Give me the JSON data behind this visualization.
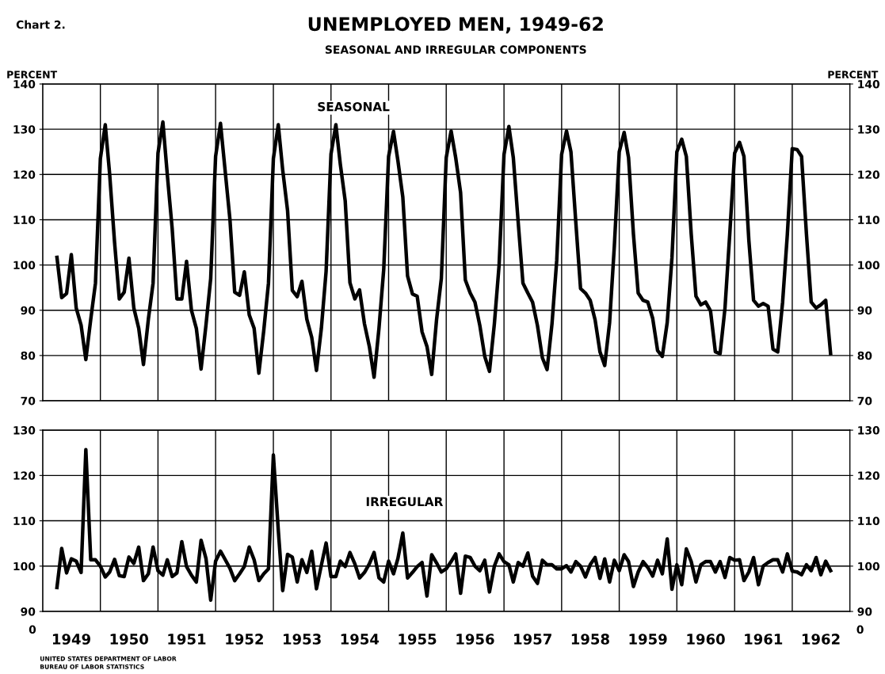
{
  "chart_data": [
    {
      "type": "line",
      "title": "UNEMPLOYED MEN, 1949-62",
      "subtitle": "SEASONAL AND IRREGULAR COMPONENTS",
      "ylabel": "PERCENT",
      "y2label": "PERCENT",
      "annotations": [
        "Chart 2."
      ],
      "x": [
        "1949-04",
        "1949-05",
        "1949-06",
        "1949-07",
        "1949-08",
        "1949-09",
        "1949-10",
        "1949-11",
        "1949-12",
        "1950-01",
        "1950-02",
        "1950-03",
        "1950-04",
        "1950-05",
        "1950-06",
        "1950-07",
        "1950-08",
        "1950-09",
        "1950-10",
        "1950-11",
        "1950-12",
        "1951-01",
        "1951-02",
        "1951-03",
        "1951-04",
        "1951-05",
        "1951-06",
        "1951-07",
        "1951-08",
        "1951-09",
        "1951-10",
        "1951-11",
        "1951-12",
        "1952-01",
        "1952-02",
        "1952-03",
        "1952-04",
        "1952-05",
        "1952-06",
        "1952-07",
        "1952-08",
        "1952-09",
        "1952-10",
        "1952-11",
        "1952-12",
        "1953-01",
        "1953-02",
        "1953-03",
        "1953-04",
        "1953-05",
        "1953-06",
        "1953-07",
        "1953-08",
        "1953-09",
        "1953-10",
        "1953-11",
        "1953-12",
        "1954-01",
        "1954-02",
        "1954-03",
        "1954-04",
        "1954-05",
        "1954-06",
        "1954-07",
        "1954-08",
        "1954-09",
        "1954-10",
        "1954-11",
        "1954-12",
        "1955-01",
        "1955-02",
        "1955-03",
        "1955-04",
        "1955-05",
        "1955-06",
        "1955-07",
        "1955-08",
        "1955-09",
        "1955-10",
        "1955-11",
        "1955-12",
        "1956-01",
        "1956-02",
        "1956-03",
        "1956-04",
        "1956-05",
        "1956-06",
        "1956-07",
        "1956-08",
        "1956-09",
        "1956-10",
        "1956-11",
        "1956-12",
        "1957-01",
        "1957-02",
        "1957-03",
        "1957-04",
        "1957-05",
        "1957-06",
        "1957-07",
        "1957-08",
        "1957-09",
        "1957-10",
        "1957-11",
        "1957-12",
        "1958-01",
        "1958-02",
        "1958-03",
        "1958-04",
        "1958-05",
        "1958-06",
        "1958-07",
        "1958-08",
        "1958-09",
        "1958-10",
        "1958-11",
        "1958-12",
        "1959-01",
        "1959-02",
        "1959-03",
        "1959-04",
        "1959-05",
        "1959-06",
        "1959-07",
        "1959-08",
        "1959-09",
        "1959-10",
        "1959-11",
        "1959-12",
        "1960-01",
        "1960-02",
        "1960-03",
        "1960-04",
        "1960-05",
        "1960-06",
        "1960-07",
        "1960-08",
        "1960-09",
        "1960-10",
        "1960-11",
        "1960-12",
        "1961-01",
        "1961-02",
        "1961-03",
        "1961-04",
        "1961-05",
        "1961-06",
        "1961-07",
        "1961-08",
        "1961-09",
        "1961-10",
        "1961-11",
        "1961-12",
        "1962-01",
        "1962-02",
        "1962-03",
        "1962-04",
        "1962-05",
        "1962-06",
        "1962-07",
        "1962-08",
        "1962-09"
      ],
      "series": [
        {
          "name": "SEASONAL",
          "color": "#000000",
          "values": [
            101.7,
            92.8,
            93.7,
            102.3,
            90.5,
            86.7,
            79.1,
            88,
            96,
            123.5,
            131,
            120,
            105,
            92.5,
            94,
            101.5,
            90.5,
            86,
            78,
            88,
            96,
            124.7,
            131.6,
            120,
            108,
            92.5,
            92.5,
            100.8,
            90,
            86,
            77,
            86.7,
            97,
            124,
            131.3,
            121,
            110,
            94,
            93.3,
            98.5,
            89,
            86,
            76.1,
            85.5,
            96,
            123.5,
            131,
            121,
            112,
            94.4,
            93,
            96.4,
            88,
            84,
            76.7,
            86,
            98.6,
            124.5,
            131,
            122.3,
            114.2,
            96.1,
            92.5,
            94.5,
            87,
            82,
            75.2,
            86,
            99,
            124,
            129.5,
            123,
            115,
            97.6,
            93.6,
            93.1,
            85.2,
            82,
            75.8,
            88,
            97,
            123.7,
            129.6,
            123.7,
            116,
            96.7,
            93.8,
            91.8,
            86.6,
            79.8,
            76.5,
            87,
            100,
            124.4,
            130.6,
            123.7,
            109.4,
            96,
            93.8,
            91.8,
            86.6,
            79.5,
            76.9,
            87,
            101,
            124.4,
            129.6,
            125,
            109.4,
            94.8,
            93.8,
            92.2,
            87.9,
            80.8,
            77.8,
            87.3,
            104.2,
            125,
            129.3,
            123.7,
            106.8,
            93.8,
            92.2,
            91.8,
            88.2,
            81.1,
            79.8,
            87.3,
            101.6,
            125,
            127.8,
            124,
            106.8,
            93.1,
            91.2,
            91.8,
            89.9,
            80.8,
            80.4,
            90.5,
            106.8,
            124.7,
            127.1,
            124,
            105.5,
            92.2,
            90.9,
            91.5,
            90.9,
            81.4,
            80.8,
            91.8,
            106.8,
            125.7,
            125.5,
            124,
            106.8,
            91.8,
            90.5,
            91.2,
            92.2,
            80.4
          ]
        }
      ],
      "xlim": [
        "1949-01",
        "1963-01"
      ],
      "xticks": [
        {
          "value": "1950-01",
          "label": null
        },
        {
          "value": "1951-01",
          "label": null
        },
        {
          "value": "1952-01",
          "label": null
        },
        {
          "value": "1953-01",
          "label": null
        },
        {
          "value": "1954-01",
          "label": null
        },
        {
          "value": "1955-01",
          "label": null
        },
        {
          "value": "1956-01",
          "label": null
        },
        {
          "value": "1957-01",
          "label": null
        },
        {
          "value": "1958-01",
          "label": null
        },
        {
          "value": "1959-01",
          "label": null
        },
        {
          "value": "1960-01",
          "label": null
        },
        {
          "value": "1961-01",
          "label": null
        },
        {
          "value": "1962-01",
          "label": null
        }
      ],
      "tick_labels": "y",
      "ylim": [
        70,
        140
      ],
      "yticks": [
        70,
        80,
        90,
        100,
        110,
        120,
        130,
        140
      ],
      "y2lim": [
        70,
        140
      ],
      "y2ticks": [
        70,
        80,
        90,
        100,
        110,
        120,
        130,
        140
      ],
      "grid": true,
      "line_style": "solid"
    },
    {
      "type": "line",
      "annotations": [
        "0",
        "0",
        "UNITED STATES DEPARTMENT OF LABOR",
        "BUREAU OF LABOR STATISTICS"
      ],
      "x": [
        "1949-04",
        "1949-05",
        "1949-06",
        "1949-07",
        "1949-08",
        "1949-09",
        "1949-10",
        "1949-11",
        "1949-12",
        "1950-01",
        "1950-02",
        "1950-03",
        "1950-04",
        "1950-05",
        "1950-06",
        "1950-07",
        "1950-08",
        "1950-09",
        "1950-10",
        "1950-11",
        "1950-12",
        "1951-01",
        "1951-02",
        "1951-03",
        "1951-04",
        "1951-05",
        "1951-06",
        "1951-07",
        "1951-08",
        "1951-09",
        "1951-10",
        "1951-11",
        "1951-12",
        "1952-01",
        "1952-02",
        "1952-03",
        "1952-04",
        "1952-05",
        "1952-06",
        "1952-07",
        "1952-08",
        "1952-09",
        "1952-10",
        "1952-11",
        "1952-12",
        "1953-01",
        "1953-02",
        "1953-03",
        "1953-04",
        "1953-05",
        "1953-06",
        "1953-07",
        "1953-08",
        "1953-09",
        "1953-10",
        "1953-11",
        "1953-12",
        "1954-01",
        "1954-02",
        "1954-03",
        "1954-04",
        "1954-05",
        "1954-06",
        "1954-07",
        "1954-08",
        "1954-09",
        "1954-10",
        "1954-11",
        "1954-12",
        "1955-01",
        "1955-02",
        "1955-03",
        "1955-04",
        "1955-05",
        "1955-06",
        "1955-07",
        "1955-08",
        "1955-09",
        "1955-10",
        "1955-11",
        "1955-12",
        "1956-01",
        "1956-02",
        "1956-03",
        "1956-04",
        "1956-05",
        "1956-06",
        "1956-07",
        "1956-08",
        "1956-09",
        "1956-10",
        "1956-11",
        "1956-12",
        "1957-01",
        "1957-02",
        "1957-03",
        "1957-04",
        "1957-05",
        "1957-06",
        "1957-07",
        "1957-08",
        "1957-09",
        "1957-10",
        "1957-11",
        "1957-12",
        "1958-01",
        "1958-02",
        "1958-03",
        "1958-04",
        "1958-05",
        "1958-06",
        "1958-07",
        "1958-08",
        "1958-09",
        "1958-10",
        "1958-11",
        "1958-12",
        "1959-01",
        "1959-02",
        "1959-03",
        "1959-04",
        "1959-05",
        "1959-06",
        "1959-07",
        "1959-08",
        "1959-09",
        "1959-10",
        "1959-11",
        "1959-12",
        "1960-01",
        "1960-02",
        "1960-03",
        "1960-04",
        "1960-05",
        "1960-06",
        "1960-07",
        "1960-08",
        "1960-09",
        "1960-10",
        "1960-11",
        "1960-12",
        "1961-01",
        "1961-02",
        "1961-03",
        "1961-04",
        "1961-05",
        "1961-06",
        "1961-07",
        "1961-08",
        "1961-09",
        "1961-10",
        "1961-11",
        "1961-12",
        "1962-01",
        "1962-02",
        "1962-03",
        "1962-04",
        "1962-05",
        "1962-06",
        "1962-07",
        "1962-08",
        "1962-09"
      ],
      "series": [
        {
          "name": "IRREGULAR",
          "color": "#000000",
          "values": [
            95.3,
            103.9,
            98.5,
            101.6,
            101.1,
            98.6,
            125.7,
            101.4,
            101.4,
            100,
            97.6,
            98.7,
            101.5,
            97.9,
            97.7,
            102,
            100.6,
            104.2,
            96.8,
            98.3,
            104.2,
            99,
            98,
            101.4,
            97.7,
            98.5,
            105.4,
            99.9,
            98,
            96.5,
            105.7,
            101.7,
            92.5,
            101.1,
            103.3,
            101.5,
            99.5,
            96.8,
            98.3,
            99.9,
            104.2,
            101.4,
            96.8,
            98.3,
            99.4,
            124.5,
            108,
            94.6,
            102.6,
            102,
            96.5,
            101.4,
            98.6,
            103.3,
            95,
            100.2,
            105.1,
            97.7,
            97.7,
            101.1,
            99.9,
            103,
            100.5,
            97.4,
            98.6,
            100.5,
            103,
            97.4,
            96.5,
            101.1,
            98.3,
            101.7,
            107.3,
            97.4,
            98.6,
            99.9,
            100.8,
            93.4,
            102.5,
            100.7,
            98.7,
            99.4,
            101,
            102.7,
            94,
            102.2,
            101.9,
            100,
            99,
            101.3,
            94.3,
            100,
            102.7,
            101,
            100.3,
            96.5,
            100.8,
            100,
            102.9,
            97.8,
            96.2,
            101.3,
            100.3,
            100.3,
            99.4,
            99.4,
            100.1,
            98.7,
            101,
            100,
            97.6,
            100.3,
            101.9,
            97.3,
            101.6,
            96.5,
            101.3,
            99,
            102.5,
            101,
            95.5,
            98.7,
            101,
            99.7,
            97.8,
            101.3,
            98.3,
            106,
            94.9,
            100.3,
            95.9,
            103.8,
            101,
            96.5,
            100.3,
            101,
            101,
            98.7,
            101,
            97.5,
            101.9,
            101.3,
            101.4,
            96.8,
            98.7,
            101.9,
            95.9,
            100,
            100.8,
            101.4,
            101.4,
            98.7,
            102.7,
            98.9,
            98.7,
            98.1,
            100.3,
            99,
            101.9,
            98.1,
            101.1,
            99
          ]
        }
      ],
      "xlim": [
        "1949-01",
        "1963-01"
      ],
      "xticks": [
        {
          "value": "1949-07",
          "label": "1949"
        },
        {
          "value": "1950-01",
          "label": null
        },
        {
          "value": "1950-07",
          "label": "1950"
        },
        {
          "value": "1951-01",
          "label": null
        },
        {
          "value": "1951-07",
          "label": "1951"
        },
        {
          "value": "1952-01",
          "label": null
        },
        {
          "value": "1952-07",
          "label": "1952"
        },
        {
          "value": "1953-01",
          "label": null
        },
        {
          "value": "1953-07",
          "label": "1953"
        },
        {
          "value": "1954-01",
          "label": null
        },
        {
          "value": "1954-07",
          "label": "1954"
        },
        {
          "value": "1955-01",
          "label": null
        },
        {
          "value": "1955-07",
          "label": "1955"
        },
        {
          "value": "1956-01",
          "label": null
        },
        {
          "value": "1956-07",
          "label": "1956"
        },
        {
          "value": "1957-01",
          "label": null
        },
        {
          "value": "1957-07",
          "label": "1957"
        },
        {
          "value": "1958-01",
          "label": null
        },
        {
          "value": "1958-07",
          "label": "1958"
        },
        {
          "value": "1959-01",
          "label": null
        },
        {
          "value": "1959-07",
          "label": "1959"
        },
        {
          "value": "1960-01",
          "label": null
        },
        {
          "value": "1960-07",
          "label": "1960"
        },
        {
          "value": "1961-01",
          "label": null
        },
        {
          "value": "1961-07",
          "label": "1961"
        },
        {
          "value": "1962-01",
          "label": null
        },
        {
          "value": "1962-07",
          "label": "1962"
        }
      ],
      "ylim": [
        90,
        130
      ],
      "yticks": [
        90,
        100,
        110,
        120,
        130
      ],
      "y2lim": [
        90,
        130
      ],
      "y2ticks": [
        90,
        100,
        110,
        120,
        130
      ],
      "grid": true,
      "line_style": "solid"
    }
  ]
}
